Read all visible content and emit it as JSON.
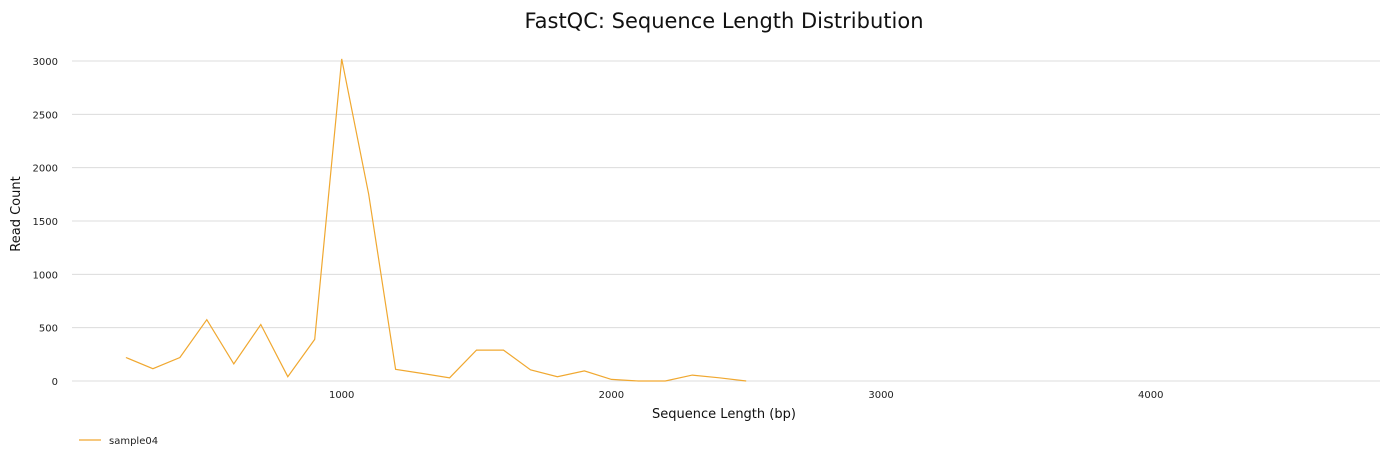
{
  "chart_data": {
    "type": "line",
    "title": "FastQC: Sequence Length Distribution",
    "xlabel": "Sequence Length (bp)",
    "ylabel": "Read Count",
    "xlim": [
      0,
      4850
    ],
    "ylim": [
      0,
      3000
    ],
    "x_ticks": [
      1000,
      2000,
      3000,
      4000
    ],
    "y_ticks": [
      0,
      500,
      1000,
      1500,
      2000,
      2500,
      3000
    ],
    "grid": "horizontal",
    "legend": "bottom-left",
    "series": [
      {
        "name": "sample04",
        "color": "#f0a830",
        "x": [
          200,
          300,
          400,
          500,
          600,
          700,
          800,
          900,
          1000,
          1100,
          1200,
          1300,
          1400,
          1500,
          1600,
          1700,
          1800,
          1900,
          2000,
          2100,
          2200,
          2300,
          2400,
          2500
        ],
        "y": [
          220,
          115,
          220,
          575,
          160,
          530,
          40,
          390,
          3020,
          1750,
          110,
          70,
          30,
          290,
          290,
          105,
          40,
          95,
          15,
          0,
          0,
          55,
          30,
          0
        ]
      }
    ]
  }
}
